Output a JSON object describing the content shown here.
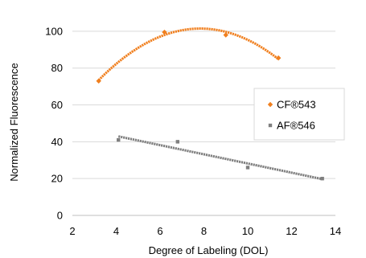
{
  "chart_data": {
    "type": "scatter",
    "title": "",
    "xlabel": "Degree of Labeling (DOL)",
    "ylabel": "Normalized Fluorescence",
    "xlim": [
      2,
      14
    ],
    "ylim": [
      0,
      110
    ],
    "xticks": [
      "2",
      "4",
      "6",
      "8",
      "10",
      "12",
      "14"
    ],
    "yticks": [
      "0",
      "20",
      "40",
      "60",
      "80",
      "100"
    ],
    "grid": "horizontal",
    "legend_position": "right",
    "series": [
      {
        "name": "CF®543",
        "color": "#F07F1E",
        "marker": "diamond",
        "points": [
          [
            3.2,
            73
          ],
          [
            6.2,
            99.5
          ],
          [
            9.0,
            98
          ],
          [
            11.4,
            85.5
          ]
        ],
        "trendline": "quadratic"
      },
      {
        "name": "AF®546",
        "color": "#7F7F7F",
        "marker": "square",
        "points": [
          [
            4.1,
            41
          ],
          [
            6.8,
            40
          ],
          [
            10.0,
            26
          ],
          [
            13.4,
            20
          ]
        ],
        "trendline": "linear"
      }
    ]
  }
}
